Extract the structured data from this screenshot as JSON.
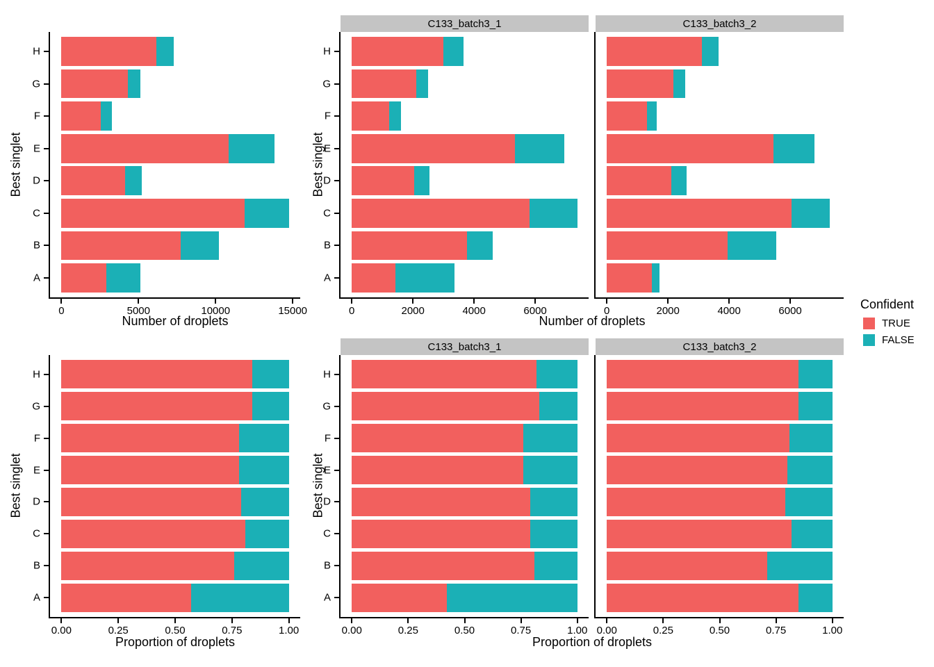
{
  "colors": {
    "true_fill": "#F2605E",
    "false_fill": "#1BB0B6",
    "strip_bg": "#C4C4C4",
    "axis": "#000000"
  },
  "labels": {
    "y_title": "Best singlet",
    "count_x_title": "Number of droplets",
    "prop_x_title": "Proportion of droplets",
    "facets": [
      "C133_batch3_1",
      "C133_batch3_2"
    ]
  },
  "legend": {
    "title": "Confident",
    "items": [
      {
        "label": "TRUE",
        "color_key": "true_fill"
      },
      {
        "label": "FALSE",
        "color_key": "false_fill"
      }
    ]
  },
  "chart_data": [
    {
      "id": "count-all",
      "type": "bar",
      "orientation": "horizontal",
      "stacked": true,
      "facet": null,
      "xlabel": "Number of droplets",
      "ylabel": "Best singlet",
      "xlim": [
        0,
        14750
      ],
      "xticks": [
        {
          "v": 0,
          "label": "0"
        },
        {
          "v": 5000,
          "label": "5000"
        },
        {
          "v": 10000,
          "label": "10000"
        },
        {
          "v": 15000,
          "label": "15000"
        }
      ],
      "categories": [
        "A",
        "B",
        "C",
        "D",
        "E",
        "F",
        "G",
        "H"
      ],
      "series": [
        {
          "name": "TRUE",
          "values": [
            2910,
            7740,
            11900,
            4130,
            10830,
            2550,
            4290,
            6150
          ]
        },
        {
          "name": "FALSE",
          "values": [
            2190,
            2460,
            2850,
            1070,
            2970,
            730,
            810,
            1150
          ]
        }
      ],
      "show_y_labels": true
    },
    {
      "id": "count-b1",
      "type": "bar",
      "orientation": "horizontal",
      "stacked": true,
      "facet": "C133_batch3_1",
      "xlabel": "Number of droplets",
      "ylabel": "Best singlet",
      "xlim": [
        0,
        7380
      ],
      "xticks": [
        {
          "v": 0,
          "label": "0"
        },
        {
          "v": 2000,
          "label": "2000"
        },
        {
          "v": 4000,
          "label": "4000"
        },
        {
          "v": 6000,
          "label": "6000"
        }
      ],
      "categories": [
        "A",
        "B",
        "C",
        "D",
        "E",
        "F",
        "G",
        "H"
      ],
      "series": [
        {
          "name": "TRUE",
          "values": [
            1430,
            3760,
            5820,
            2050,
            5330,
            1230,
            2100,
            3000
          ]
        },
        {
          "name": "FALSE",
          "values": [
            1940,
            850,
            1560,
            500,
            1620,
            370,
            400,
            650
          ]
        }
      ],
      "show_y_labels": true
    },
    {
      "id": "count-b2",
      "type": "bar",
      "orientation": "horizontal",
      "stacked": true,
      "facet": "C133_batch3_2",
      "xlabel": "Number of droplets",
      "ylabel": "Best singlet",
      "xlim": [
        0,
        7380
      ],
      "xticks": [
        {
          "v": 0,
          "label": "0"
        },
        {
          "v": 2000,
          "label": "2000"
        },
        {
          "v": 4000,
          "label": "4000"
        },
        {
          "v": 6000,
          "label": "6000"
        }
      ],
      "categories": [
        "A",
        "B",
        "C",
        "D",
        "E",
        "F",
        "G",
        "H"
      ],
      "series": [
        {
          "name": "TRUE",
          "values": [
            1480,
            3950,
            6040,
            2100,
            5460,
            1320,
            2170,
            3120
          ]
        },
        {
          "name": "FALSE",
          "values": [
            250,
            1600,
            1260,
            520,
            1330,
            310,
            400,
            540
          ]
        }
      ],
      "show_y_labels": false
    },
    {
      "id": "prop-all",
      "type": "bar",
      "orientation": "horizontal",
      "stacked": true,
      "facet": null,
      "xlabel": "Proportion of droplets",
      "ylabel": "Best singlet",
      "xlim": [
        0,
        1
      ],
      "xticks": [
        {
          "v": 0,
          "label": "0.00"
        },
        {
          "v": 0.25,
          "label": "0.25"
        },
        {
          "v": 0.5,
          "label": "0.50"
        },
        {
          "v": 0.75,
          "label": "0.75"
        },
        {
          "v": 1,
          "label": "1.00"
        }
      ],
      "categories": [
        "A",
        "B",
        "C",
        "D",
        "E",
        "F",
        "G",
        "H"
      ],
      "series": [
        {
          "name": "TRUE",
          "values": [
            0.57,
            0.76,
            0.81,
            0.79,
            0.78,
            0.78,
            0.84,
            0.84
          ]
        },
        {
          "name": "FALSE",
          "values": [
            0.43,
            0.24,
            0.19,
            0.21,
            0.22,
            0.22,
            0.16,
            0.16
          ]
        }
      ],
      "show_y_labels": true
    },
    {
      "id": "prop-b1",
      "type": "bar",
      "orientation": "horizontal",
      "stacked": true,
      "facet": "C133_batch3_1",
      "xlabel": "Proportion of droplets",
      "ylabel": "Best singlet",
      "xlim": [
        0,
        1
      ],
      "xticks": [
        {
          "v": 0,
          "label": "0.00"
        },
        {
          "v": 0.25,
          "label": "0.25"
        },
        {
          "v": 0.5,
          "label": "0.50"
        },
        {
          "v": 0.75,
          "label": "0.75"
        },
        {
          "v": 1,
          "label": "1.00"
        }
      ],
      "categories": [
        "A",
        "B",
        "C",
        "D",
        "E",
        "F",
        "G",
        "H"
      ],
      "series": [
        {
          "name": "TRUE",
          "values": [
            0.42,
            0.81,
            0.79,
            0.79,
            0.76,
            0.76,
            0.83,
            0.82
          ]
        },
        {
          "name": "FALSE",
          "values": [
            0.58,
            0.19,
            0.21,
            0.21,
            0.24,
            0.24,
            0.17,
            0.18
          ]
        }
      ],
      "show_y_labels": true
    },
    {
      "id": "prop-b2",
      "type": "bar",
      "orientation": "horizontal",
      "stacked": true,
      "facet": "C133_batch3_2",
      "xlabel": "Proportion of droplets",
      "ylabel": "Best singlet",
      "xlim": [
        0,
        1
      ],
      "xticks": [
        {
          "v": 0,
          "label": "0.00"
        },
        {
          "v": 0.25,
          "label": "0.25"
        },
        {
          "v": 0.5,
          "label": "0.50"
        },
        {
          "v": 0.75,
          "label": "0.75"
        },
        {
          "v": 1,
          "label": "1.00"
        }
      ],
      "categories": [
        "A",
        "B",
        "C",
        "D",
        "E",
        "F",
        "G",
        "H"
      ],
      "series": [
        {
          "name": "TRUE",
          "values": [
            0.85,
            0.71,
            0.82,
            0.79,
            0.8,
            0.81,
            0.85,
            0.85
          ]
        },
        {
          "name": "FALSE",
          "values": [
            0.15,
            0.29,
            0.18,
            0.21,
            0.2,
            0.19,
            0.15,
            0.15
          ]
        }
      ],
      "show_y_labels": false
    }
  ]
}
